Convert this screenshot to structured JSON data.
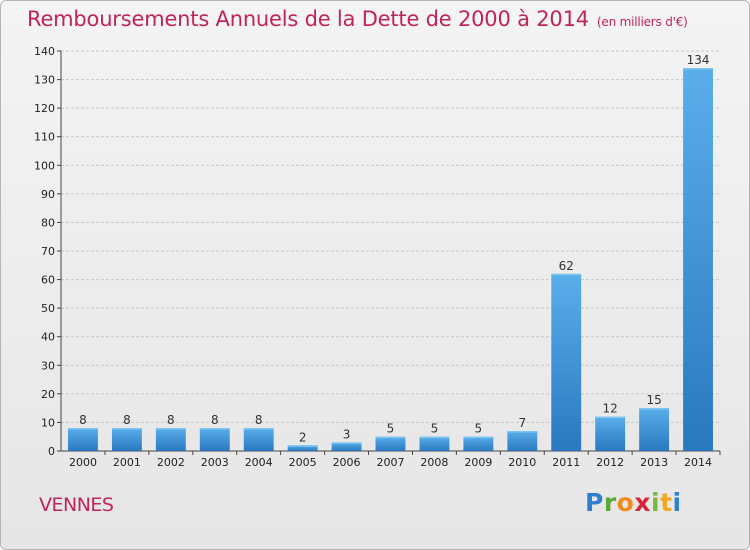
{
  "chart_data": {
    "type": "bar",
    "title": "Remboursements Annuels de la Dette de 2000 à 2014",
    "subtitle": "(en milliers d'€)",
    "categories": [
      "2000",
      "2001",
      "2002",
      "2003",
      "2004",
      "2005",
      "2006",
      "2007",
      "2008",
      "2009",
      "2010",
      "2011",
      "2012",
      "2013",
      "2014"
    ],
    "values": [
      8,
      8,
      8,
      8,
      8,
      2,
      3,
      5,
      5,
      5,
      7,
      62,
      12,
      15,
      134
    ],
    "ylim": [
      0,
      140
    ],
    "yticks": [
      0,
      10,
      20,
      30,
      40,
      50,
      60,
      70,
      80,
      90,
      100,
      110,
      120,
      130,
      140
    ],
    "grid": true,
    "bar_color": "#3a8fd6",
    "grid_color": "#c8c8c8"
  },
  "footer": {
    "city": "VENNES",
    "logo": {
      "p": "P",
      "r": "r",
      "o": "o",
      "x": "x",
      "i": "i",
      "t": "t",
      "i2": "i"
    }
  },
  "colors": {
    "title": "#c0245c",
    "city": "#c0245c"
  }
}
